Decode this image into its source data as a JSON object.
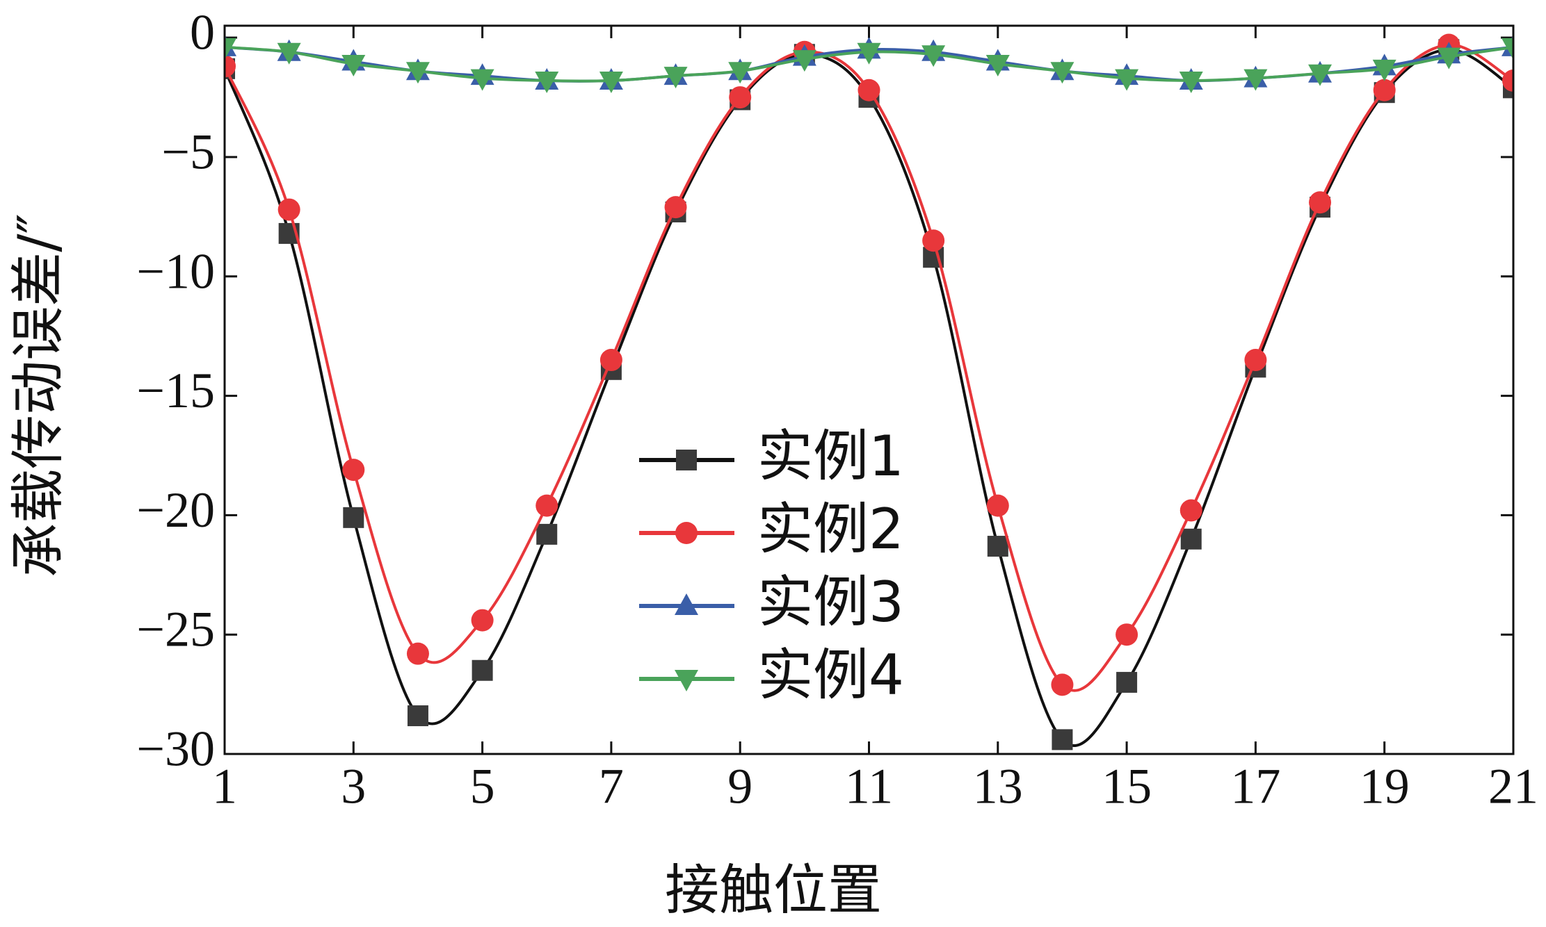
{
  "chart_data": {
    "type": "line",
    "x_label": "接触位置",
    "y_label": "承载传动误差/″",
    "x": [
      1,
      2,
      3,
      4,
      5,
      6,
      7,
      8,
      9,
      10,
      11,
      12,
      13,
      14,
      15,
      16,
      17,
      18,
      19,
      20,
      21
    ],
    "series": [
      {
        "name": "实例1",
        "color": "#3a3a3a",
        "line_color": "#111111",
        "marker": "square",
        "values": [
          -1.3,
          -8.2,
          -20.1,
          -28.4,
          -26.5,
          -20.8,
          -13.9,
          -7.3,
          -2.6,
          -0.7,
          -2.5,
          -9.2,
          -21.3,
          -29.4,
          -27.0,
          -21.0,
          -13.8,
          -7.1,
          -2.3,
          -0.5,
          -2.1
        ]
      },
      {
        "name": "实例2",
        "color": "#e8373b",
        "line_color": "#e8373b",
        "marker": "circle",
        "values": [
          -1.2,
          -7.2,
          -18.1,
          -25.8,
          -24.4,
          -19.6,
          -13.5,
          -7.1,
          -2.5,
          -0.6,
          -2.2,
          -8.5,
          -19.6,
          -27.1,
          -25.0,
          -19.8,
          -13.5,
          -6.9,
          -2.2,
          -0.3,
          -1.8
        ]
      },
      {
        "name": "实例3",
        "color": "#3a5ea8",
        "line_color": "#3a5ea8",
        "marker": "triangle-up",
        "values": [
          -0.4,
          -0.6,
          -1.0,
          -1.4,
          -1.6,
          -1.8,
          -1.8,
          -1.6,
          -1.4,
          -0.8,
          -0.5,
          -0.6,
          -1.0,
          -1.4,
          -1.6,
          -1.8,
          -1.7,
          -1.5,
          -1.2,
          -0.7,
          -0.4
        ]
      },
      {
        "name": "实例4",
        "color": "#4aa35a",
        "line_color": "#4aa35a",
        "marker": "triangle-down",
        "values": [
          -0.4,
          -0.6,
          -1.1,
          -1.4,
          -1.7,
          -1.8,
          -1.8,
          -1.6,
          -1.4,
          -0.9,
          -0.6,
          -0.7,
          -1.1,
          -1.4,
          -1.7,
          -1.8,
          -1.7,
          -1.5,
          -1.3,
          -0.8,
          -0.4
        ]
      }
    ],
    "xlim": [
      1,
      21
    ],
    "xticks": [
      1,
      3,
      5,
      7,
      9,
      11,
      13,
      15,
      17,
      19,
      21
    ],
    "ylim": [
      -30,
      0.5
    ],
    "yticks": [
      {
        "value": 0,
        "label": "0"
      },
      {
        "value": -5,
        "label": "−5"
      },
      {
        "value": -10,
        "label": "−10"
      },
      {
        "value": -15,
        "label": "−15"
      },
      {
        "value": -20,
        "label": "−20"
      },
      {
        "value": -25,
        "label": "−25"
      },
      {
        "value": -30,
        "label": "−30"
      }
    ],
    "legend": "center",
    "grid": false
  }
}
